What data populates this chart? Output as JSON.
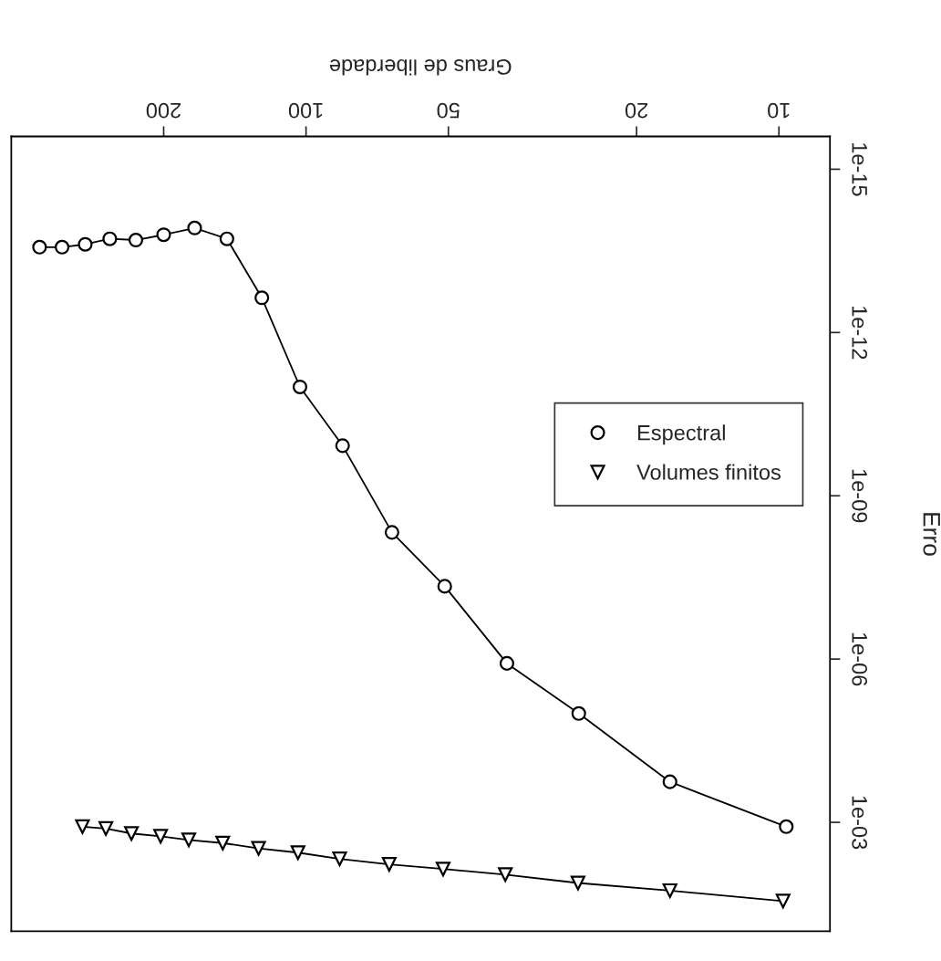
{
  "chart_data": {
    "type": "line",
    "xlabel": "Graus de liberdade",
    "ylabel": "Erro",
    "log": "xy",
    "xlim": [
      420,
      7.8
    ],
    "ylim": [
      0.1,
      2.5e-16
    ],
    "xticks": [
      10,
      20,
      50,
      100,
      200
    ],
    "yticks": [
      {
        "value": 1e-15,
        "label": "1e-15"
      },
      {
        "value": 1e-12,
        "label": "1e-12"
      },
      {
        "value": 1e-09,
        "label": "1e-09"
      },
      {
        "value": 1e-06,
        "label": "1e-06"
      },
      {
        "value": 0.001,
        "label": "1e-03"
      }
    ],
    "grid": false,
    "legend": "right",
    "line_style": "solid",
    "series": [
      {
        "name": "Espectral",
        "color": "#000000",
        "marker": "circle",
        "x": [
          9.65,
          17,
          26.5,
          37.6,
          50.9,
          65.8,
          83.7,
          103,
          124,
          147,
          172,
          200,
          229,
          260,
          293,
          328,
          366
        ],
        "values": [
          0.0012,
          0.00018,
          1e-05,
          1.2e-06,
          4.6e-08,
          4.7e-09,
          1.2e-10,
          1e-11,
          2.3e-13,
          1.9e-14,
          1.2e-14,
          1.6e-14,
          2e-14,
          1.9e-14,
          2.4e-14,
          2.7e-14,
          2.7e-14
        ]
      },
      {
        "name": "Volumes finitos",
        "color": "#000000",
        "marker": "triangle",
        "x": [
          9.8,
          17,
          26.6,
          37.9,
          51.3,
          66.7,
          84.9,
          104,
          126,
          150,
          177,
          203,
          234,
          265,
          297
        ],
        "values": [
          0.028,
          0.018,
          0.013,
          0.0091,
          0.0072,
          0.0059,
          0.0047,
          0.0036,
          0.003,
          0.0024,
          0.0021,
          0.0018,
          0.0016,
          0.0013,
          0.0012
        ]
      }
    ]
  }
}
